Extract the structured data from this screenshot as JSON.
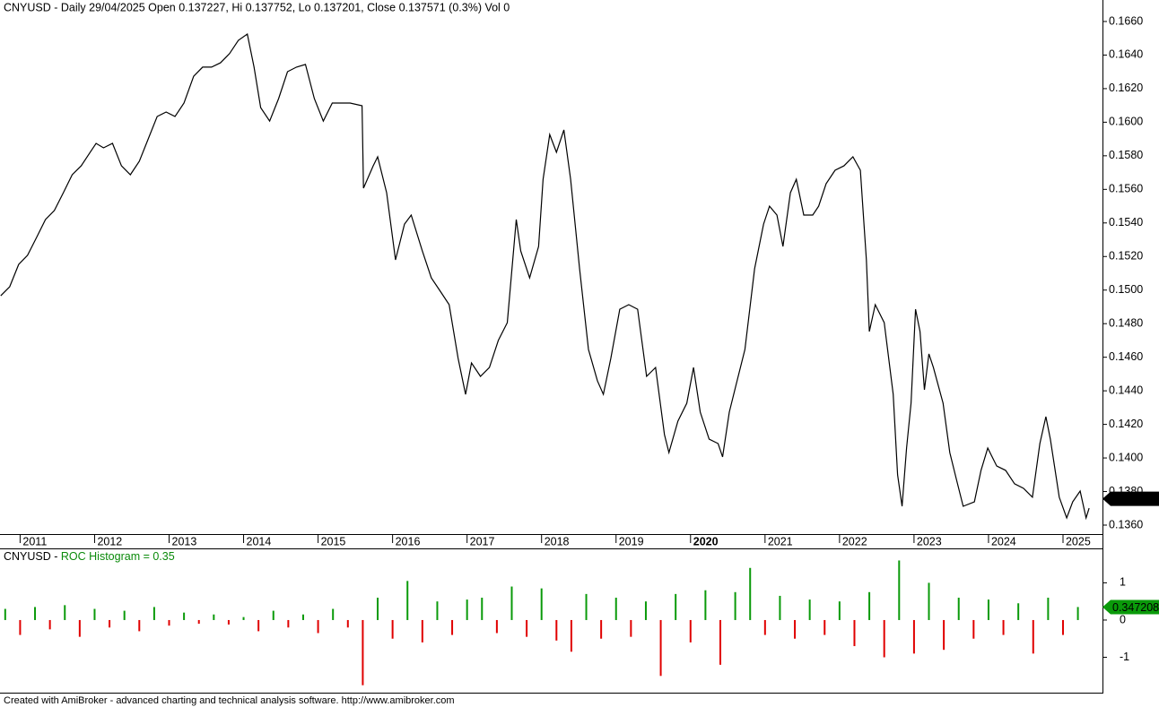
{
  "chart_data": [
    {
      "type": "line",
      "title": "CNYUSD - Daily 29/04/2025 Open 0.137227, Hi 0.137752, Lo 0.137201, Close 0.137571 (0.3%) Vol 0",
      "color": "#000000",
      "x": [
        2010.74,
        2010.86,
        2010.98,
        2011.1,
        2011.22,
        2011.34,
        2011.46,
        2011.58,
        2011.7,
        2011.82,
        2011.94,
        2012.02,
        2012.12,
        2012.24,
        2012.36,
        2012.48,
        2012.6,
        2012.72,
        2012.84,
        2012.96,
        2013.08,
        2013.2,
        2013.33,
        2013.45,
        2013.57,
        2013.69,
        2013.81,
        2013.93,
        2014.05,
        2014.14,
        2014.23,
        2014.35,
        2014.47,
        2014.59,
        2014.71,
        2014.83,
        2014.95,
        2015.07,
        2015.19,
        2015.31,
        2015.43,
        2015.59,
        2015.61,
        2015.74,
        2015.8,
        2015.92,
        2016.04,
        2016.16,
        2016.25,
        2016.4,
        2016.52,
        2016.64,
        2016.76,
        2016.88,
        2016.98,
        2017.06,
        2017.18,
        2017.3,
        2017.42,
        2017.54,
        2017.66,
        2017.72,
        2017.84,
        2017.96,
        2018.02,
        2018.11,
        2018.2,
        2018.3,
        2018.39,
        2018.51,
        2018.63,
        2018.75,
        2018.83,
        2018.93,
        2019.05,
        2019.17,
        2019.29,
        2019.41,
        2019.53,
        2019.65,
        2019.71,
        2019.83,
        2019.95,
        2020.04,
        2020.13,
        2020.25,
        2020.37,
        2020.43,
        2020.52,
        2020.61,
        2020.73,
        2020.86,
        2020.98,
        2021.06,
        2021.16,
        2021.24,
        2021.34,
        2021.42,
        2021.52,
        2021.64,
        2021.72,
        2021.82,
        2021.94,
        2022.06,
        2022.18,
        2022.28,
        2022.36,
        2022.4,
        2022.48,
        2022.6,
        2022.72,
        2022.78,
        2022.84,
        2022.9,
        2022.96,
        2023.02,
        2023.08,
        2023.14,
        2023.2,
        2023.26,
        2023.39,
        2023.48,
        2023.57,
        2023.66,
        2023.81,
        2023.9,
        2023.99,
        2024.11,
        2024.23,
        2024.35,
        2024.47,
        2024.59,
        2024.69,
        2024.77,
        2024.83,
        2024.95,
        2025.05,
        2025.13,
        2025.23,
        2025.31,
        2025.35
      ],
      "values": [
        0.14966,
        0.1502,
        0.15153,
        0.15207,
        0.15313,
        0.1542,
        0.15474,
        0.1558,
        0.15687,
        0.1574,
        0.15821,
        0.15874,
        0.15847,
        0.15874,
        0.1574,
        0.15687,
        0.15767,
        0.15901,
        0.16034,
        0.16061,
        0.16034,
        0.16114,
        0.16274,
        0.16328,
        0.16328,
        0.16354,
        0.16408,
        0.16488,
        0.16525,
        0.16328,
        0.16087,
        0.16007,
        0.16141,
        0.16301,
        0.16328,
        0.16344,
        0.16141,
        0.16007,
        0.16114,
        0.16114,
        0.16114,
        0.16098,
        0.15607,
        0.1574,
        0.15794,
        0.1558,
        0.1518,
        0.15393,
        0.15447,
        0.15233,
        0.15073,
        0.14993,
        0.14913,
        0.14593,
        0.14379,
        0.14566,
        0.14486,
        0.14539,
        0.147,
        0.14806,
        0.1542,
        0.15233,
        0.15073,
        0.1526,
        0.1566,
        0.15927,
        0.15821,
        0.15954,
        0.1566,
        0.15127,
        0.14646,
        0.14459,
        0.14379,
        0.14593,
        0.14886,
        0.14913,
        0.14886,
        0.14486,
        0.14539,
        0.14139,
        0.14032,
        0.14219,
        0.14326,
        0.14539,
        0.14273,
        0.14112,
        0.14086,
        0.14006,
        0.14273,
        0.14433,
        0.14646,
        0.15127,
        0.15393,
        0.155,
        0.15447,
        0.1526,
        0.1558,
        0.1566,
        0.15447,
        0.15447,
        0.155,
        0.15634,
        0.15714,
        0.1574,
        0.15794,
        0.15714,
        0.1518,
        0.14753,
        0.14913,
        0.14806,
        0.14379,
        0.13899,
        0.13712,
        0.14059,
        0.14326,
        0.14886,
        0.14753,
        0.14406,
        0.1462,
        0.14539,
        0.14326,
        0.14032,
        0.13872,
        0.13712,
        0.13739,
        0.13926,
        0.14059,
        0.13952,
        0.13926,
        0.13846,
        0.13819,
        0.13766,
        0.14086,
        0.14246,
        0.14112,
        0.13766,
        0.13643,
        0.13739,
        0.13803,
        0.13643,
        0.13701
      ],
      "xlim": [
        2010.73,
        2025.53
      ],
      "xticks": [
        2011,
        2012,
        2013,
        2014,
        2015,
        2016,
        2017,
        2018,
        2019,
        2020,
        2021,
        2022,
        2023,
        2024,
        2025
      ],
      "ylim": [
        0.13552,
        0.16728
      ],
      "yticks": [
        {
          "value": 0.166,
          "label": "0.1660"
        },
        {
          "value": 0.164,
          "label": "0.1640"
        },
        {
          "value": 0.162,
          "label": "0.1620"
        },
        {
          "value": 0.16,
          "label": "0.1600"
        },
        {
          "value": 0.158,
          "label": "0.1580"
        },
        {
          "value": 0.156,
          "label": "0.1560"
        },
        {
          "value": 0.154,
          "label": "0.1540"
        },
        {
          "value": 0.152,
          "label": "0.1520"
        },
        {
          "value": 0.15,
          "label": "0.1500"
        },
        {
          "value": 0.148,
          "label": "0.1480"
        },
        {
          "value": 0.146,
          "label": "0.1460"
        },
        {
          "value": 0.144,
          "label": "0.1440"
        },
        {
          "value": 0.142,
          "label": "0.1420"
        },
        {
          "value": 0.14,
          "label": "0.1400"
        },
        {
          "value": 0.138,
          "label": "0.1380"
        },
        {
          "value": 0.136,
          "label": "0.1360"
        }
      ],
      "last_value": 0.137571,
      "last_value_color": "#000000"
    },
    {
      "type": "bar",
      "title_prefix": "CNYUSD - ",
      "title": "ROC Histogram = 0.35",
      "title_color": "#0a8a0a",
      "up_color": "#0a9a0a",
      "down_color": "#e00000",
      "x": [
        2010.8,
        2011.0,
        2011.2,
        2011.4,
        2011.6,
        2011.8,
        2012.0,
        2012.2,
        2012.4,
        2012.6,
        2012.8,
        2013.0,
        2013.2,
        2013.4,
        2013.6,
        2013.8,
        2014.0,
        2014.2,
        2014.4,
        2014.6,
        2014.8,
        2015.0,
        2015.2,
        2015.4,
        2015.6,
        2015.8,
        2016.0,
        2016.2,
        2016.4,
        2016.6,
        2016.8,
        2017.0,
        2017.2,
        2017.4,
        2017.6,
        2017.8,
        2018.0,
        2018.2,
        2018.4,
        2018.6,
        2018.8,
        2019.0,
        2019.2,
        2019.4,
        2019.6,
        2019.8,
        2020.0,
        2020.2,
        2020.4,
        2020.6,
        2020.8,
        2021.0,
        2021.2,
        2021.4,
        2021.6,
        2021.8,
        2022.0,
        2022.2,
        2022.4,
        2022.6,
        2022.8,
        2023.0,
        2023.2,
        2023.4,
        2023.6,
        2023.8,
        2024.0,
        2024.2,
        2024.4,
        2024.6,
        2024.8,
        2025.0,
        2025.2
      ],
      "values": [
        0.3,
        -0.4,
        0.35,
        -0.25,
        0.4,
        -0.45,
        0.3,
        -0.2,
        0.25,
        -0.3,
        0.35,
        -0.15,
        0.2,
        -0.1,
        0.15,
        -0.12,
        0.08,
        -0.3,
        0.25,
        -0.2,
        0.15,
        -0.35,
        0.3,
        -0.2,
        -1.75,
        0.6,
        -0.5,
        1.05,
        -0.6,
        0.5,
        -0.4,
        0.55,
        0.6,
        -0.35,
        0.9,
        -0.45,
        0.85,
        -0.55,
        -0.85,
        0.7,
        -0.5,
        0.6,
        -0.45,
        0.5,
        -1.5,
        0.7,
        -0.6,
        0.8,
        -1.2,
        0.75,
        1.4,
        -0.4,
        0.65,
        -0.5,
        0.55,
        -0.4,
        0.5,
        -0.7,
        0.75,
        -1.0,
        1.6,
        -0.9,
        1.0,
        -0.8,
        0.6,
        -0.5,
        0.55,
        -0.4,
        0.45,
        -0.9,
        0.6,
        -0.4,
        0.35
      ],
      "xlim": [
        2010.73,
        2025.53
      ],
      "ylim": [
        -1.95,
        1.9
      ],
      "yticks": [
        1,
        0,
        -1
      ],
      "last_value": 0.347208,
      "last_value_color": "#0a9a0a"
    }
  ],
  "footer": "Created with AmiBroker - advanced charting and technical analysis software. http://www.amibroker.com"
}
